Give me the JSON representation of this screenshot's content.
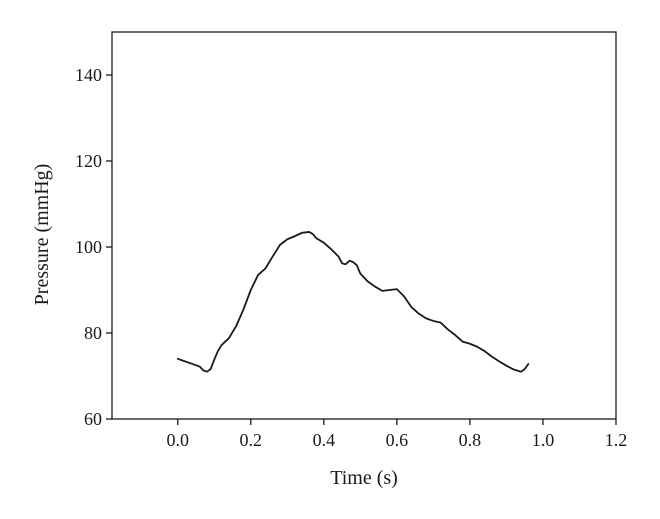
{
  "chart_data": {
    "type": "line",
    "title": "",
    "xlabel": "Time (s)",
    "ylabel": "Pressure (mmHg)",
    "xlim": [
      -0.18,
      1.2
    ],
    "ylim": [
      60,
      150
    ],
    "xticks": [
      0.0,
      0.2,
      0.4,
      0.6,
      0.8,
      1.0,
      1.2
    ],
    "xtick_labels": [
      "0.0",
      "0.2",
      "0.4",
      "0.6",
      "0.8",
      "1.0",
      "1.2"
    ],
    "yticks": [
      60,
      80,
      100,
      120,
      140
    ],
    "ytick_labels": [
      "60",
      "80",
      "100",
      "120",
      "140"
    ],
    "grid": false,
    "legend": "none",
    "series": [
      {
        "color": "#1a1a1a",
        "x": [
          0.0,
          0.02,
          0.04,
          0.06,
          0.07,
          0.08,
          0.09,
          0.1,
          0.11,
          0.12,
          0.14,
          0.16,
          0.18,
          0.2,
          0.22,
          0.24,
          0.26,
          0.28,
          0.3,
          0.32,
          0.34,
          0.36,
          0.37,
          0.38,
          0.4,
          0.42,
          0.44,
          0.45,
          0.46,
          0.47,
          0.48,
          0.49,
          0.5,
          0.52,
          0.54,
          0.56,
          0.58,
          0.6,
          0.62,
          0.64,
          0.66,
          0.68,
          0.7,
          0.72,
          0.74,
          0.76,
          0.78,
          0.8,
          0.82,
          0.84,
          0.86,
          0.88,
          0.9,
          0.92,
          0.94,
          0.95,
          0.96
        ],
        "y": [
          74.0,
          73.4,
          72.8,
          72.2,
          71.3,
          71.0,
          71.6,
          73.8,
          75.8,
          77.2,
          78.8,
          81.6,
          85.5,
          90.0,
          93.5,
          95.0,
          97.8,
          100.5,
          101.8,
          102.5,
          103.3,
          103.5,
          103.0,
          102.0,
          101.0,
          99.5,
          97.8,
          96.2,
          96.0,
          96.8,
          96.5,
          95.8,
          93.8,
          92.0,
          90.8,
          89.8,
          90.0,
          90.2,
          88.5,
          86.0,
          84.5,
          83.4,
          82.8,
          82.4,
          80.8,
          79.5,
          78.0,
          77.5,
          76.8,
          75.8,
          74.5,
          73.4,
          72.4,
          71.5,
          71.0,
          71.6,
          72.8
        ]
      }
    ]
  }
}
